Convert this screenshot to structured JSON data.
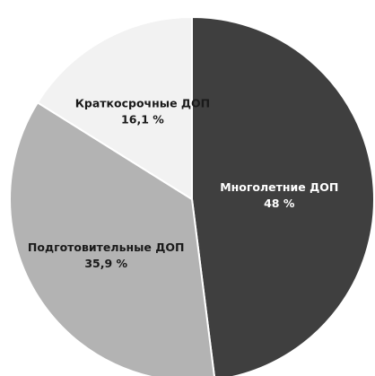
{
  "chart_data": {
    "type": "pie",
    "title": "",
    "slices": [
      {
        "label": "Многолетние ДОП",
        "value": 48.0,
        "value_text": "48 %",
        "color": "#3f3f3f",
        "label_color": "#ffffff"
      },
      {
        "label": "Подготовительные ДОП",
        "value": 35.9,
        "value_text": "35,9 %",
        "color": "#b3b3b3",
        "label_color": "#1a1a1a"
      },
      {
        "label": "Краткосрочные ДОП",
        "value": 16.1,
        "value_text": "16,1 %",
        "color": "#f2f2f2",
        "label_color": "#1a1a1a"
      }
    ],
    "start_angle_deg": 0,
    "direction": "clockwise",
    "stroke_color": "#ffffff"
  }
}
